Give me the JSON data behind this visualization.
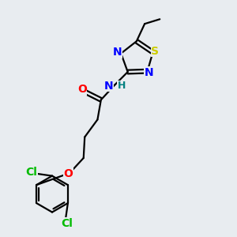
{
  "background_color": "#e8ecf0",
  "bond_color": "#000000",
  "atom_colors": {
    "N": "#0000ff",
    "O": "#ff0000",
    "S": "#cccc00",
    "Cl": "#00bb00",
    "C": "#000000",
    "H": "#008080"
  },
  "line_width": 1.6
}
